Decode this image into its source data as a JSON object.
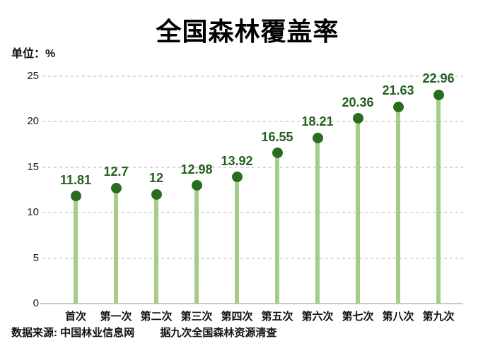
{
  "title": "全国森林覆盖率",
  "unit_label": "单位：%",
  "footer": {
    "source_label": "数据来源:",
    "source_value": "中国林业信息网",
    "note": "据九次全国森林资源清查"
  },
  "colors": {
    "dot": "#2b6d20",
    "stem": "#a5cd89",
    "value_label": "#24601f",
    "gridline": "#d9d9d9",
    "baseline": "#c9c9c9",
    "text": "#111111"
  },
  "chart_data": {
    "type": "bar",
    "style": "lollipop",
    "title": "全国森林覆盖率",
    "unit": "%",
    "categories": [
      "首次",
      "第一次",
      "第二次",
      "第三次",
      "第四次",
      "第五次",
      "第六次",
      "第七次",
      "第八次",
      "第九次"
    ],
    "values": [
      11.81,
      12.7,
      12,
      12.98,
      13.92,
      16.55,
      18.21,
      20.36,
      21.63,
      22.96
    ],
    "value_labels": [
      "11.81",
      "12.7",
      "12",
      "12.98",
      "13.92",
      "16.55",
      "18.21",
      "20.36",
      "21.63",
      "22.96"
    ],
    "xlabel": "",
    "ylabel": "单位：%",
    "ylim": [
      0,
      25
    ],
    "yticks": [
      0,
      5,
      10,
      15,
      20,
      25
    ],
    "grid": true,
    "legend": false
  }
}
